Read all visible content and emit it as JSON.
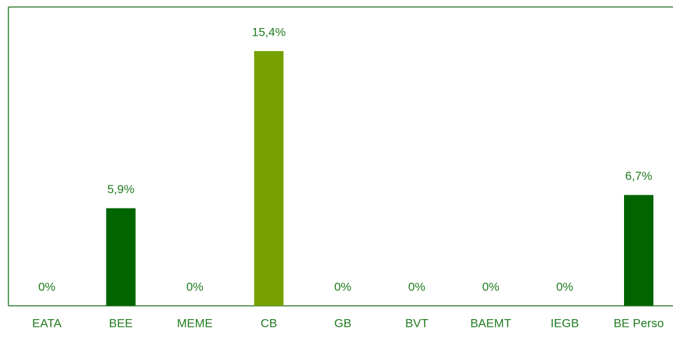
{
  "chart_data": {
    "type": "bar",
    "categories": [
      "EATA",
      "BEE",
      "MEME",
      "CB",
      "GB",
      "BVT",
      "BAEMT",
      "IEGB",
      "BE Perso"
    ],
    "values": [
      0,
      5.9,
      0,
      15.4,
      0,
      0,
      0,
      0,
      6.7
    ],
    "value_labels": [
      "0%",
      "5,9%",
      "0%",
      "15,4%",
      "0%",
      "0%",
      "0%",
      "0%",
      "6,7%"
    ],
    "colors": [
      "#006400",
      "#006400",
      "#006400",
      "#76a100",
      "#006400",
      "#006400",
      "#006400",
      "#006400",
      "#006400"
    ]
  }
}
